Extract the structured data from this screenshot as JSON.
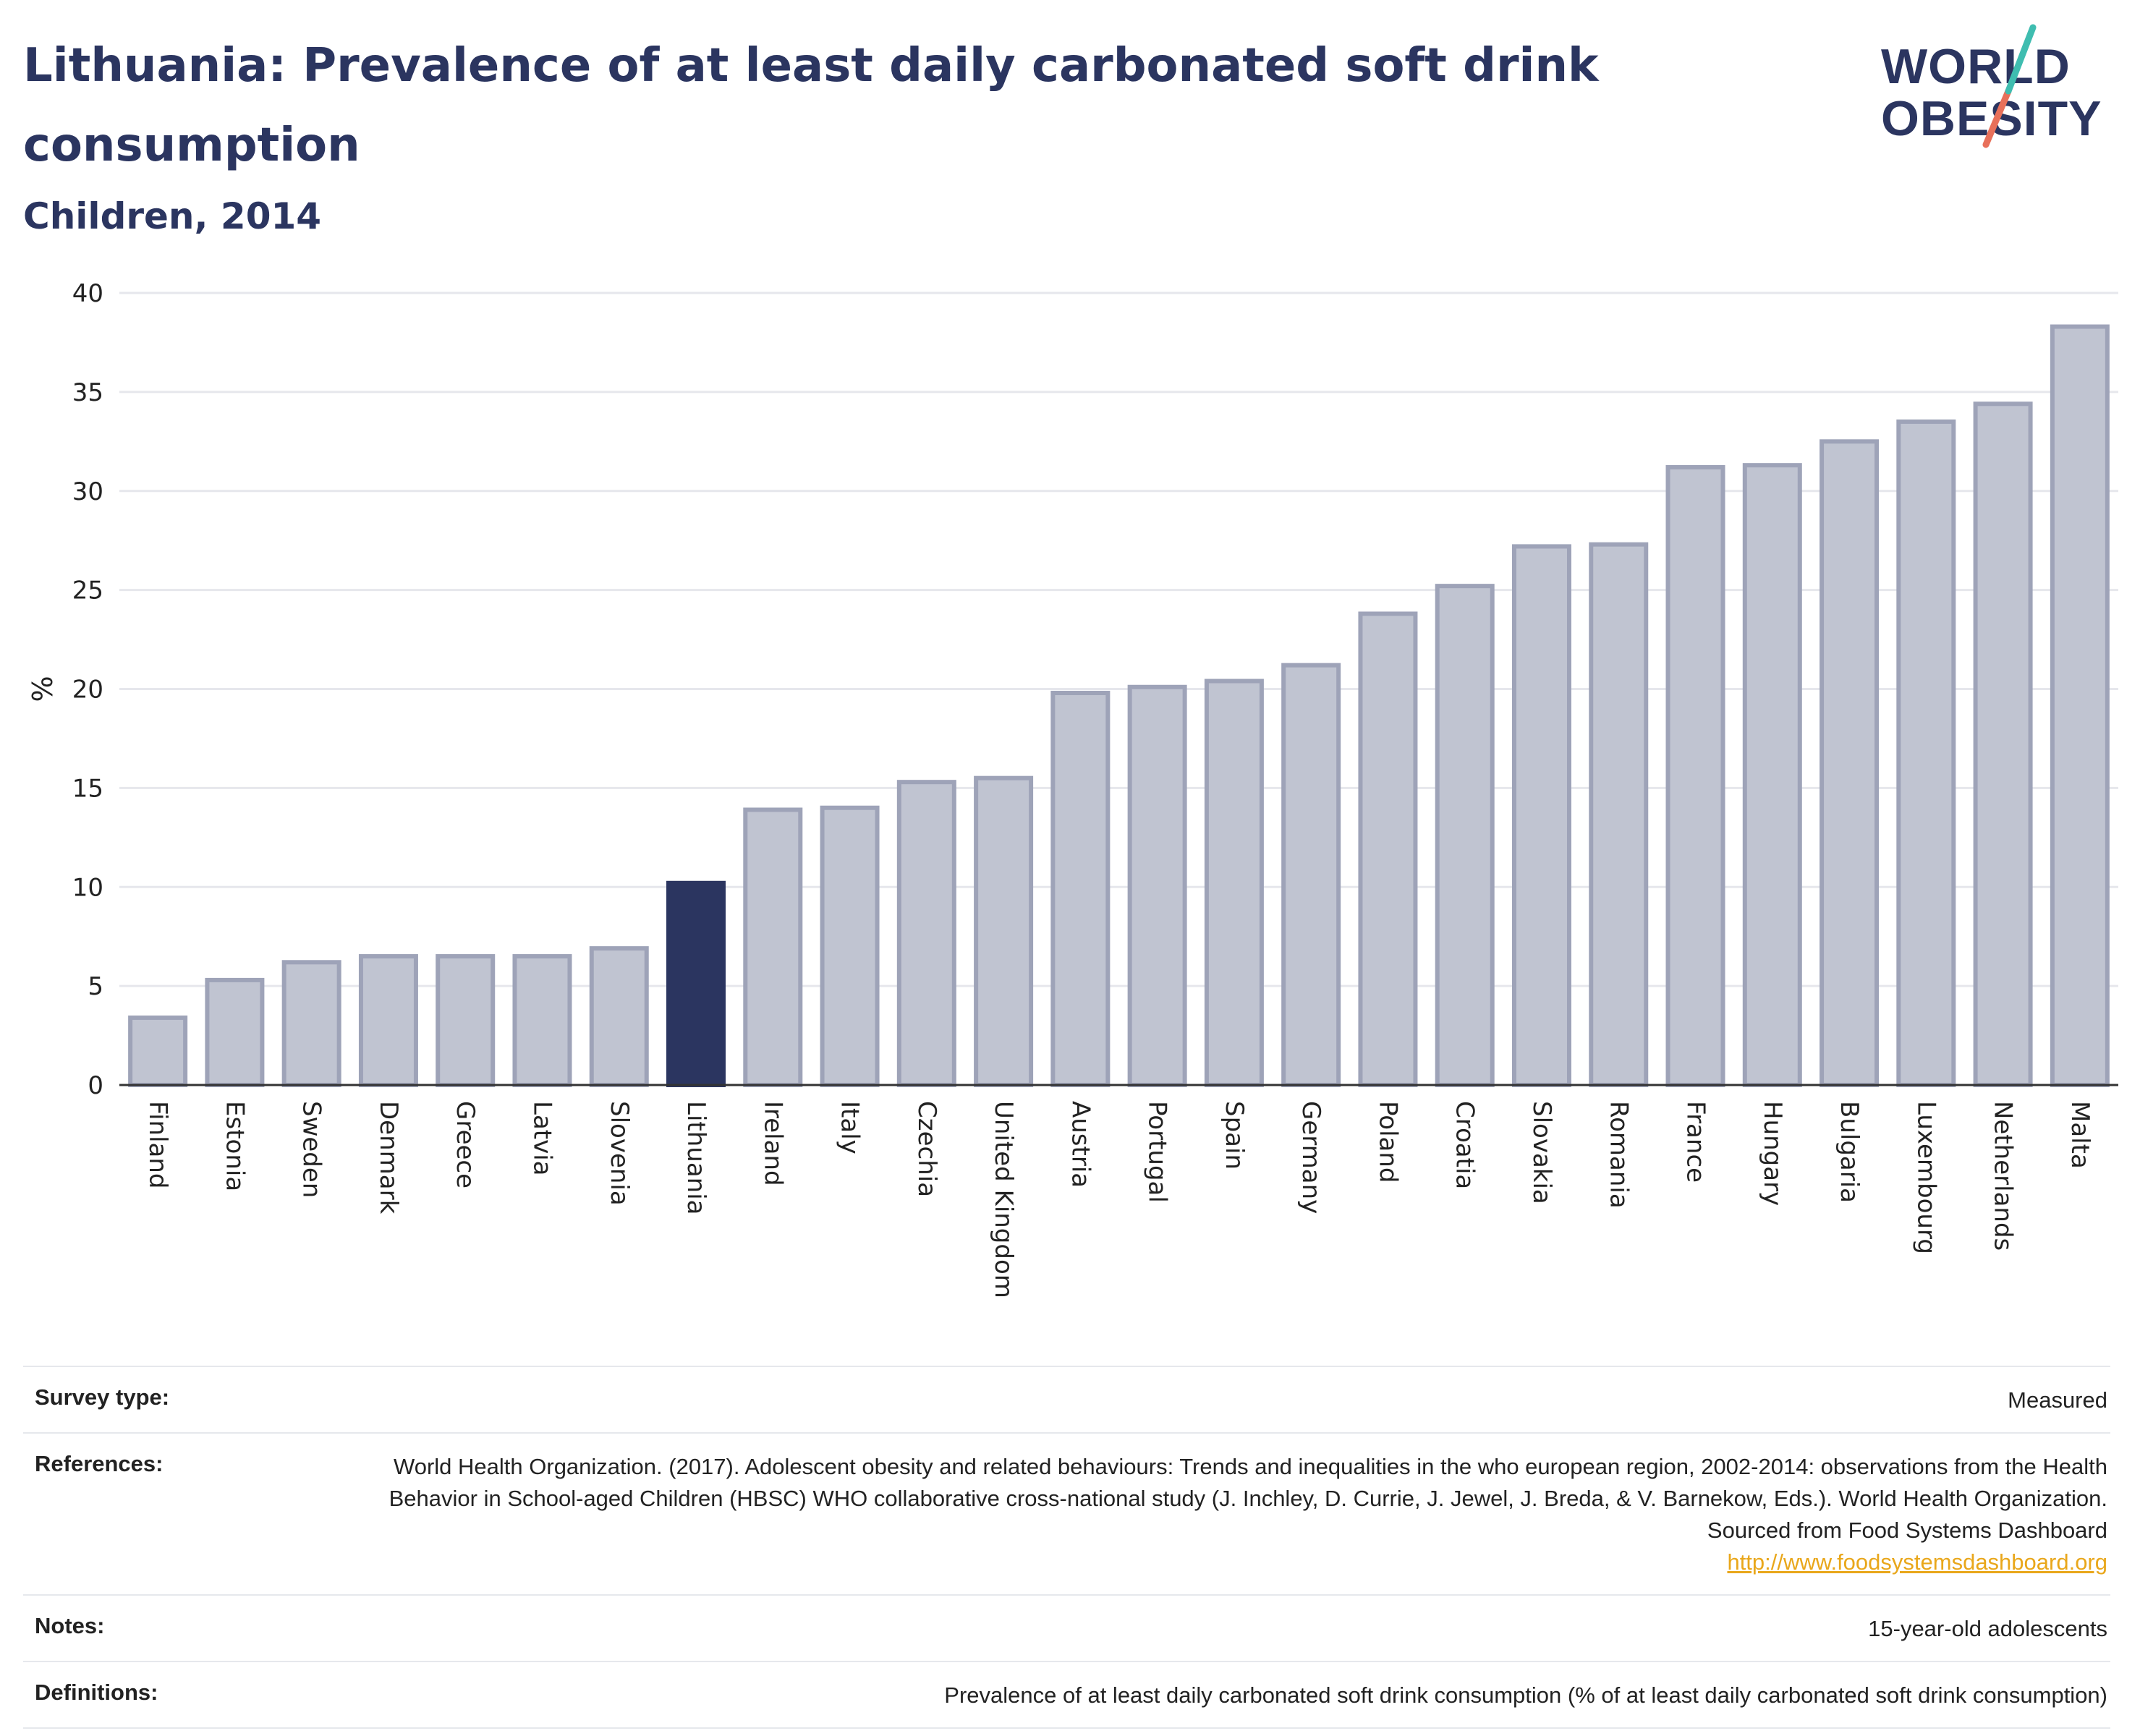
{
  "header": {
    "title": "Lithuania: Prevalence of at least daily carbonated soft drink consumption",
    "subtitle": "Children, 2014"
  },
  "logo": {
    "line1": "WORLD",
    "line2": "OBESITY",
    "accent_colors": [
      "#3fbdb0",
      "#e8705a"
    ]
  },
  "colors": {
    "highlight": "#2b3560",
    "bar_fill": "#c0c4d1",
    "bar_stroke": "#9ea3b8",
    "grid": "#e6e7ec"
  },
  "chart_data": {
    "type": "bar",
    "ylabel": "%",
    "ylim": [
      0,
      40
    ],
    "yticks": [
      0,
      5,
      10,
      15,
      20,
      25,
      30,
      35,
      40
    ],
    "grid": true,
    "highlight": "Lithuania",
    "categories": [
      "Finland",
      "Estonia",
      "Sweden",
      "Denmark",
      "Greece",
      "Latvia",
      "Slovenia",
      "Lithuania",
      "Ireland",
      "Italy",
      "Czechia",
      "United Kingdom",
      "Austria",
      "Portugal",
      "Spain",
      "Germany",
      "Poland",
      "Croatia",
      "Slovakia",
      "Romania",
      "France",
      "Hungary",
      "Bulgaria",
      "Luxembourg",
      "Netherlands",
      "Malta"
    ],
    "values": [
      3.4,
      5.3,
      6.2,
      6.5,
      6.5,
      6.5,
      6.9,
      10.2,
      13.9,
      14.0,
      15.3,
      15.5,
      19.8,
      20.1,
      20.4,
      21.2,
      23.8,
      25.2,
      27.2,
      27.3,
      31.2,
      31.3,
      32.5,
      33.5,
      34.4,
      38.3
    ]
  },
  "meta": {
    "survey_type_label": "Survey type:",
    "survey_type_value": "Measured",
    "references_label": "References:",
    "references_value": "World Health Organization. (2017). Adolescent obesity and related behaviours: Trends and inequalities in the who european region, 2002-2014: observations from the Health Behavior in School-aged Children (HBSC) WHO collaborative cross-national study (J. Inchley, D. Currie, J. Jewel, J. Breda, & V. Barnekow, Eds.). World Health Organization. Sourced from Food Systems Dashboard",
    "references_link": "http://www.foodsystemsdashboard.org",
    "notes_label": "Notes:",
    "notes_value": "15-year-old adolescents",
    "definitions_label": "Definitions:",
    "definitions_value": "Prevalence of at least daily carbonated soft drink consumption (% of at least daily carbonated soft drink consumption)"
  }
}
